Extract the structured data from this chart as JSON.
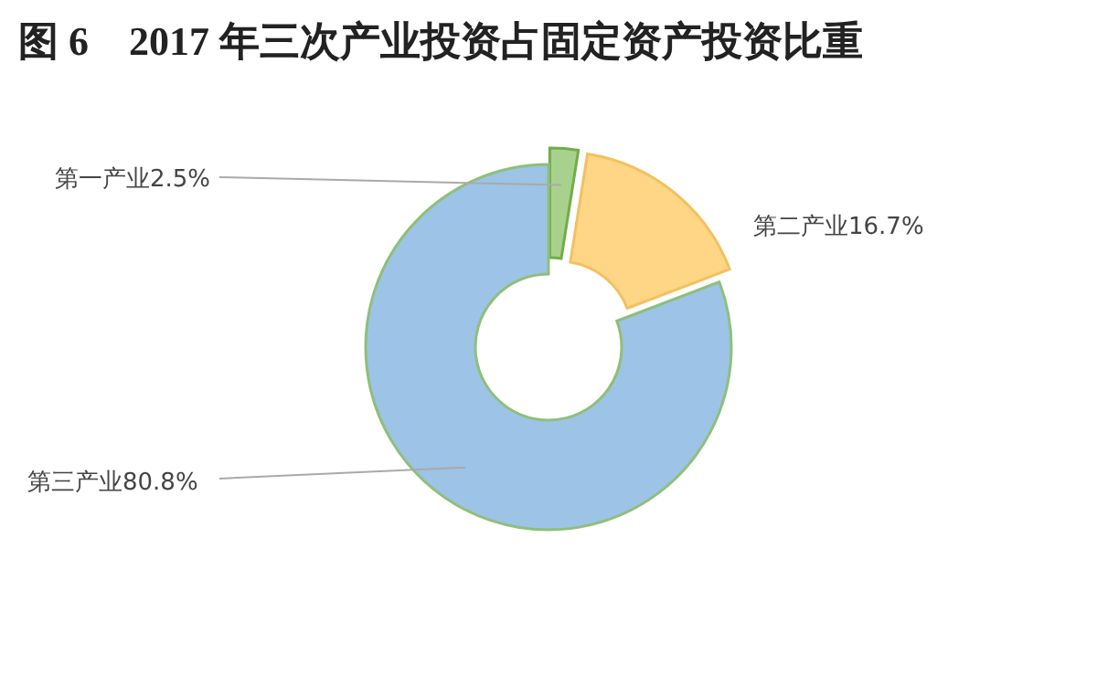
{
  "chart_data": {
    "type": "donut",
    "title": "图 6　2017 年三次产业投资占固定资产投资比重",
    "categories": [
      "第一产业",
      "第二产业",
      "第三产业"
    ],
    "values": [
      2.5,
      16.7,
      80.8
    ],
    "value_labels": [
      "2.5%",
      "16.7%",
      "80.8%"
    ],
    "colors": [
      "#a9d18e",
      "#ffd685",
      "#9dc3e6"
    ],
    "legend": false
  }
}
